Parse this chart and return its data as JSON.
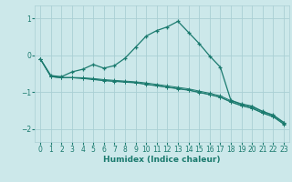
{
  "title": "",
  "xlabel": "Humidex (Indice chaleur)",
  "ylabel": "",
  "background_color": "#cce8ea",
  "grid_color": "#aacfd4",
  "line_color": "#1a7a6e",
  "xlim": [
    -0.5,
    23.5
  ],
  "ylim": [
    -2.35,
    1.35
  ],
  "yticks": [
    -2,
    -1,
    0,
    1
  ],
  "xticks": [
    0,
    1,
    2,
    3,
    4,
    5,
    6,
    7,
    8,
    9,
    10,
    11,
    12,
    13,
    14,
    15,
    16,
    17,
    18,
    19,
    20,
    21,
    22,
    23
  ],
  "line1_x": [
    0,
    1,
    2,
    3,
    4,
    5,
    6,
    7,
    8,
    9,
    10,
    11,
    12,
    13,
    14,
    15,
    16,
    17,
    18,
    19,
    20,
    21,
    22,
    23
  ],
  "line1_y": [
    -0.1,
    -0.55,
    -0.58,
    -0.45,
    -0.38,
    -0.25,
    -0.35,
    -0.28,
    -0.08,
    0.22,
    0.52,
    0.67,
    0.77,
    0.92,
    0.62,
    0.32,
    -0.02,
    -0.32,
    -1.22,
    -1.32,
    -1.38,
    -1.52,
    -1.62,
    -1.82
  ],
  "line2_x": [
    0,
    1,
    2,
    3,
    4,
    5,
    6,
    7,
    8,
    9,
    10,
    11,
    12,
    13,
    14,
    15,
    16,
    17,
    18,
    19,
    20,
    21,
    22,
    23
  ],
  "line2_y": [
    -0.1,
    -0.58,
    -0.6,
    -0.6,
    -0.61,
    -0.63,
    -0.66,
    -0.68,
    -0.7,
    -0.72,
    -0.75,
    -0.79,
    -0.83,
    -0.87,
    -0.91,
    -0.97,
    -1.03,
    -1.1,
    -1.23,
    -1.33,
    -1.4,
    -1.53,
    -1.63,
    -1.83
  ],
  "line3_x": [
    0,
    1,
    2,
    3,
    4,
    5,
    6,
    7,
    8,
    9,
    10,
    11,
    12,
    13,
    14,
    15,
    16,
    17,
    18,
    19,
    20,
    21,
    22,
    23
  ],
  "line3_y": [
    -0.1,
    -0.58,
    -0.61,
    -0.61,
    -0.62,
    -0.65,
    -0.68,
    -0.7,
    -0.72,
    -0.74,
    -0.78,
    -0.82,
    -0.86,
    -0.9,
    -0.94,
    -1.0,
    -1.06,
    -1.13,
    -1.26,
    -1.36,
    -1.43,
    -1.56,
    -1.66,
    -1.86
  ],
  "line4_x": [
    0,
    1,
    2,
    3,
    4,
    5,
    6,
    7,
    8,
    9,
    10,
    11,
    12,
    13,
    14,
    15,
    16,
    17,
    18,
    19,
    20,
    21,
    22,
    23
  ],
  "line4_y": [
    -0.1,
    -0.58,
    -0.61,
    -0.61,
    -0.63,
    -0.66,
    -0.69,
    -0.71,
    -0.73,
    -0.75,
    -0.79,
    -0.83,
    -0.87,
    -0.91,
    -0.95,
    -1.01,
    -1.07,
    -1.14,
    -1.27,
    -1.37,
    -1.44,
    -1.57,
    -1.67,
    -1.87
  ]
}
